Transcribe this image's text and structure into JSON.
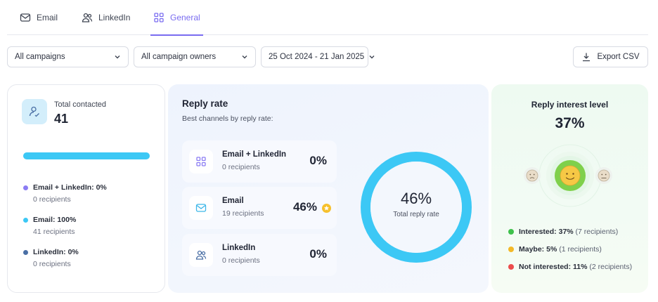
{
  "tabs": [
    {
      "label": "Email",
      "icon": "mail-icon"
    },
    {
      "label": "LinkedIn",
      "icon": "users-icon"
    },
    {
      "label": "General",
      "icon": "grid-icon",
      "active": true
    }
  ],
  "filters": {
    "campaigns": "All campaigns",
    "owners": "All campaign owners",
    "date_range": "25 Oct 2024 - 21 Jan 2025",
    "export_label": "Export CSV"
  },
  "total_contacted": {
    "label": "Total contacted",
    "value": "41",
    "progress_fraction": 1.0,
    "breakdown": [
      {
        "title": "Email + LinkedIn: 0%",
        "sub": "0 recipients",
        "color": "#8b7cf3"
      },
      {
        "title": "Email: 100%",
        "sub": "41 recipients",
        "color": "#3cc8f5"
      },
      {
        "title": "LinkedIn: 0%",
        "sub": "0 recipients",
        "color": "#4a6fa5"
      }
    ]
  },
  "reply_rate": {
    "title": "Reply rate",
    "subtitle": "Best channels by reply rate:",
    "channels": [
      {
        "name": "Email + LinkedIn",
        "sub": "0 recipients",
        "value": "0%",
        "icon": "grid-icon",
        "best": false
      },
      {
        "name": "Email",
        "sub": "19 recipients",
        "value": "46%",
        "icon": "mail-icon",
        "best": true
      },
      {
        "name": "LinkedIn",
        "sub": "0 recipients",
        "value": "0%",
        "icon": "users-icon",
        "best": false
      }
    ],
    "total_value": "46%",
    "total_label": "Total reply rate",
    "total_fraction": 1.0,
    "ring_color": "#3cc8f5"
  },
  "interest": {
    "title": "Reply interest level",
    "value": "37%",
    "legend": [
      {
        "label": "Interested:",
        "pct": "37%",
        "count": "(7 recipients)",
        "color": "#3ec14b"
      },
      {
        "label": "Maybe:",
        "pct": "5%",
        "count": "(1 recipients)",
        "color": "#f3b928"
      },
      {
        "label": "Not interested:",
        "pct": "11%",
        "count": "(2 recipients)",
        "color": "#ec4c4c"
      }
    ]
  }
}
